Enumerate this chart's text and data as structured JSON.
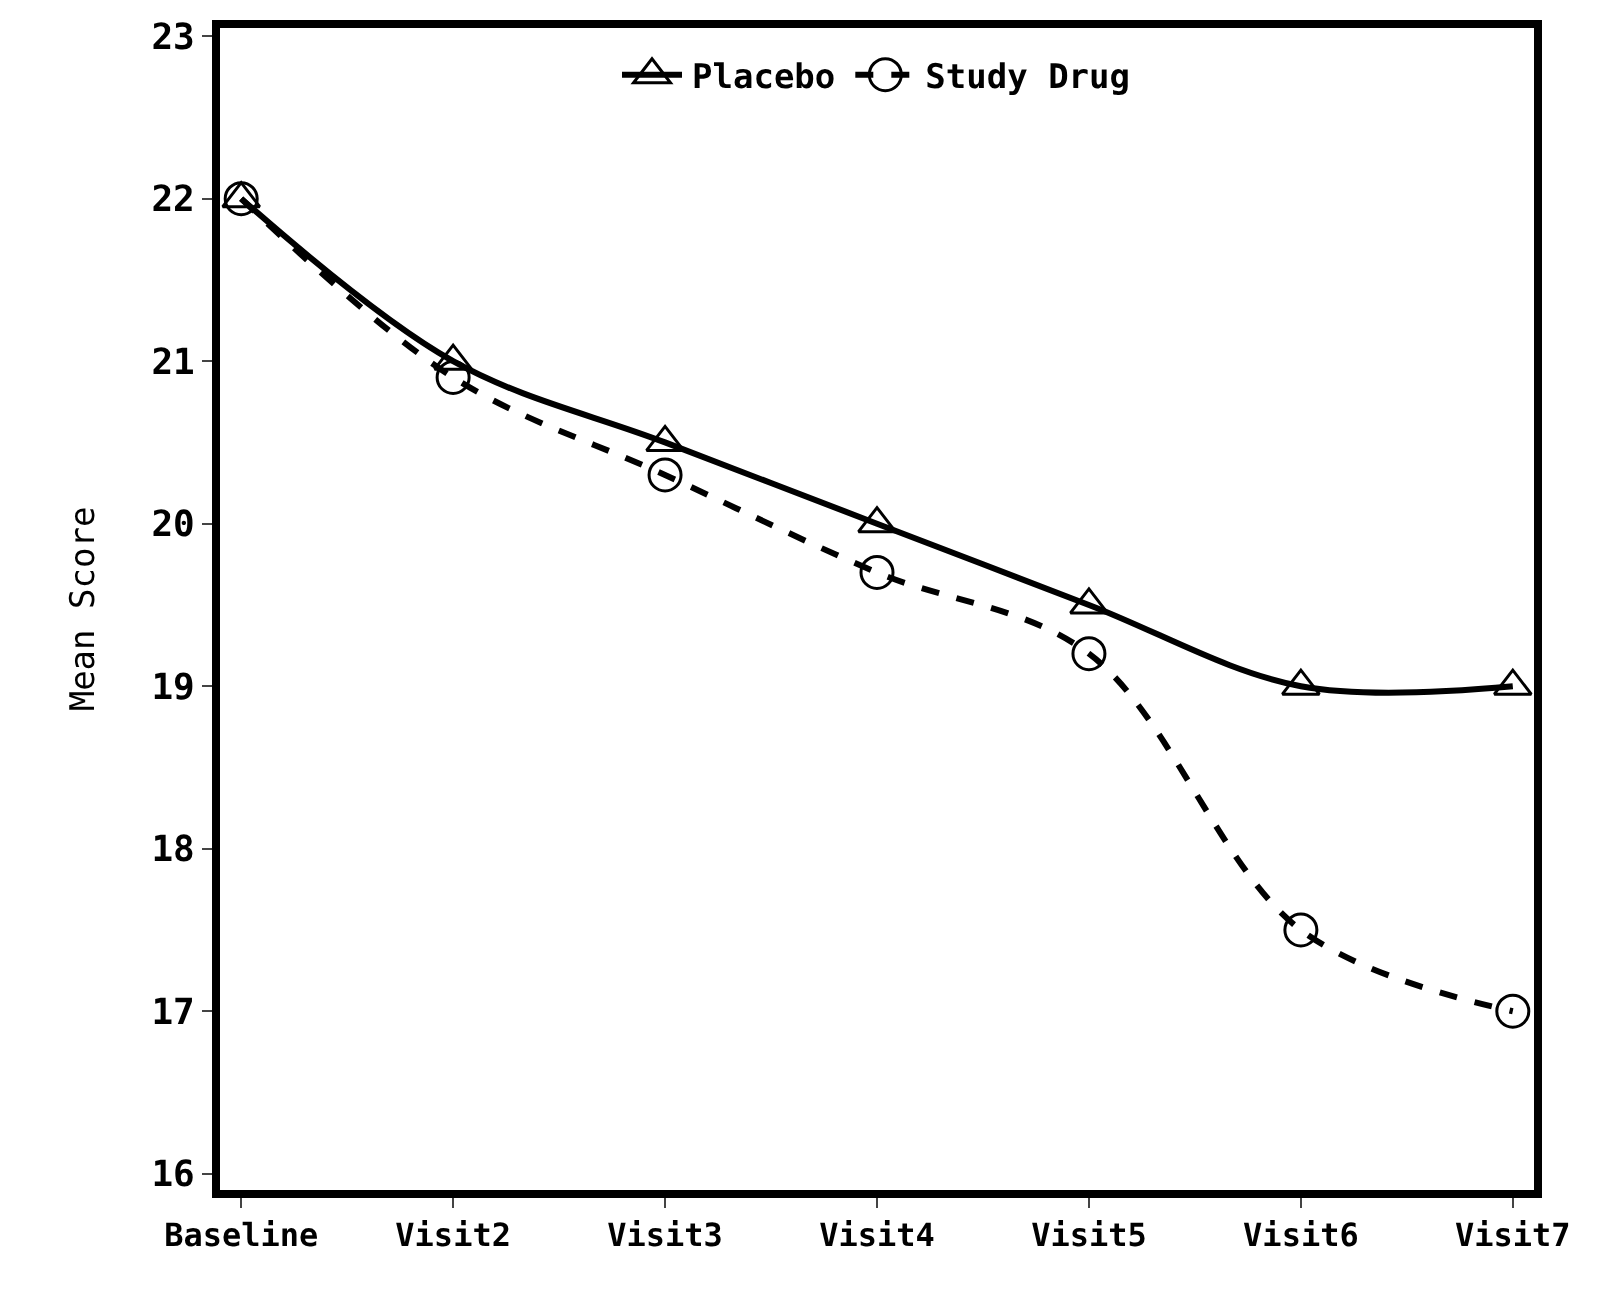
{
  "chart_data": {
    "type": "line",
    "ylabel": "Mean Score",
    "categories": [
      "Baseline",
      "Visit2",
      "Visit3",
      "Visit4",
      "Visit5",
      "Visit6",
      "Visit7"
    ],
    "series": [
      {
        "name": "Placebo",
        "color": "#000000",
        "marker": "triangle",
        "line_style": "solid",
        "values": [
          22,
          21,
          20.5,
          20,
          19.5,
          19,
          19
        ]
      },
      {
        "name": "Study Drug",
        "color": "#000000",
        "marker": "circle",
        "line_style": "dashed",
        "values": [
          22,
          20.9,
          20.3,
          19.7,
          19.2,
          17.5,
          17
        ]
      }
    ],
    "ylim": [
      15.9,
      23.05
    ],
    "yticks": [
      16,
      17,
      18,
      19,
      20,
      21,
      22,
      23
    ],
    "grid": false,
    "legend": "top"
  }
}
